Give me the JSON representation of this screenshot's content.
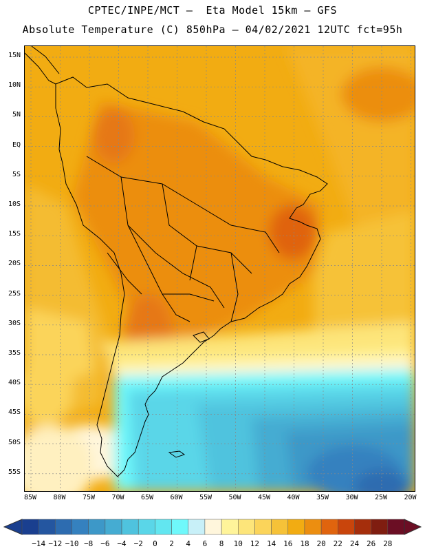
{
  "header": {
    "line1": "CPTEC/INPE/MCT –  Eta Model 15km – GFS",
    "line2": "Absolute Temperature (C) 850hPa – 04/02/2021 12UTC fct=95h"
  },
  "map": {
    "lat_labels": [
      "15N",
      "10N",
      "5N",
      "EQ",
      "5S",
      "10S",
      "15S",
      "20S",
      "25S",
      "30S",
      "35S",
      "40S",
      "45S",
      "50S",
      "55S"
    ],
    "lon_labels": [
      "85W",
      "80W",
      "75W",
      "70W",
      "65W",
      "60W",
      "55W",
      "50W",
      "45W",
      "40W",
      "35W",
      "30W",
      "25W",
      "20W"
    ]
  },
  "colorbar": {
    "labels": [
      "-14",
      "-12",
      "-10",
      "-8",
      "-6",
      "-4",
      "-2",
      "0",
      "2",
      "4",
      "6",
      "8",
      "10",
      "12",
      "14",
      "16",
      "18",
      "20",
      "22",
      "24",
      "26",
      "28"
    ],
    "colors": [
      "#1a3f8f",
      "#2456a0",
      "#2d6cb0",
      "#3581bf",
      "#3d98c8",
      "#45acd2",
      "#4fc3de",
      "#5ad6e8",
      "#62e6f0",
      "#6ff8fb",
      "#c8f0f8",
      "#fff6dc",
      "#fff49a",
      "#fde57a",
      "#fbd45a",
      "#f6c238",
      "#f2ac12",
      "#ec8e10",
      "#e0640e",
      "#c9450c",
      "#a52e0c",
      "#7f1d10",
      "#6b0e24"
    ]
  }
}
